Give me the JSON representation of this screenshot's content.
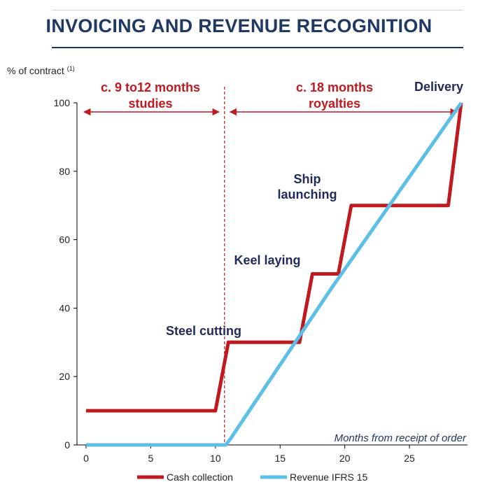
{
  "title": "INVOICING AND REVENUE RECOGNITION",
  "chart_data": {
    "type": "line",
    "y_axis_label": "% of contract",
    "y_axis_label_sup": "(1)",
    "x_axis_note": "Months from receipt of order",
    "xlim": [
      0,
      29
    ],
    "ylim": [
      0,
      100
    ],
    "x_ticks": [
      0,
      5,
      10,
      15,
      20,
      25
    ],
    "y_ticks": [
      0,
      20,
      40,
      60,
      80,
      100
    ],
    "y_tick_labels": [
      "0",
      "20",
      "40",
      "60",
      "80",
      "100"
    ],
    "series": [
      {
        "name": "Cash collection",
        "color": "#c0191f",
        "x": [
          0,
          10,
          11,
          16.5,
          17.5,
          19.5,
          20.5,
          28,
          29
        ],
        "y": [
          10,
          10,
          30,
          30,
          50,
          50,
          70,
          70,
          100
        ]
      },
      {
        "name": "Revenue IFRS 15",
        "color": "#5bbfe8",
        "x": [
          0,
          10.8,
          11.2,
          19,
          29
        ],
        "y": [
          0,
          0,
          2,
          46,
          100
        ]
      }
    ],
    "phases": [
      {
        "line1": "c. 9 to12 months",
        "line2": "studies",
        "x_start": 0,
        "x_end": 10.7
      },
      {
        "line1": "c. 18 months",
        "line2": "royalties",
        "x_start": 10.7,
        "x_end": 29
      }
    ],
    "divider_x": 10.7,
    "milestones": [
      {
        "label": "Steel cutting"
      },
      {
        "label": "Keel laying"
      },
      {
        "label": "Ship",
        "label2": "launching"
      },
      {
        "label": "Delivery"
      }
    ]
  }
}
